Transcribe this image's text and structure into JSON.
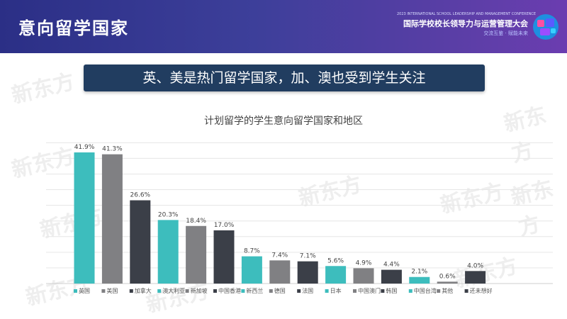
{
  "header": {
    "title": "意向留学国家",
    "conference_small": "2023 INTERNATIONAL SCHOOL LEADERSHIP AND MANAGEMENT CONFERENCE",
    "conference_name": "国际学校校长领导力与运营管理大会",
    "conference_slogan": "交流互鉴 · 赋能未来",
    "brand_color": "#2b2f86"
  },
  "banner": {
    "text": "英、美是热门留学国家，加、澳也受到学生关注"
  },
  "watermark": {
    "text": "新东方"
  },
  "chart_data": {
    "type": "bar",
    "title": "计划留学的学生意向留学国家和地区",
    "categories": [
      "英国",
      "美国",
      "加拿大",
      "澳大利亚",
      "新加坡",
      "中国香港",
      "新西兰",
      "德国",
      "法国",
      "日本",
      "中国澳门",
      "韩国",
      "中国台湾",
      "其他",
      "还未想好"
    ],
    "values": [
      41.9,
      41.3,
      26.6,
      20.3,
      18.4,
      17.0,
      8.7,
      7.4,
      7.1,
      5.6,
      4.9,
      4.4,
      2.1,
      0.6,
      4.0
    ],
    "value_labels": [
      "41.9%",
      "41.3%",
      "26.6%",
      "20.3%",
      "18.4%",
      "17.0%",
      "8.7%",
      "7.4%",
      "7.1%",
      "5.6%",
      "4.9%",
      "4.4%",
      "2.1%",
      "0.6%",
      "4.0%"
    ],
    "colors": [
      "#3dbdbd",
      "#808083",
      "#3b3f48",
      "#3dbdbd",
      "#808083",
      "#3b3f48",
      "#3dbdbd",
      "#808083",
      "#3b3f48",
      "#3dbdbd",
      "#808083",
      "#3b3f48",
      "#3dbdbd",
      "#808083",
      "#3b3f48"
    ],
    "ylim": [
      0,
      45
    ],
    "grid": true,
    "legend": "bottom"
  }
}
